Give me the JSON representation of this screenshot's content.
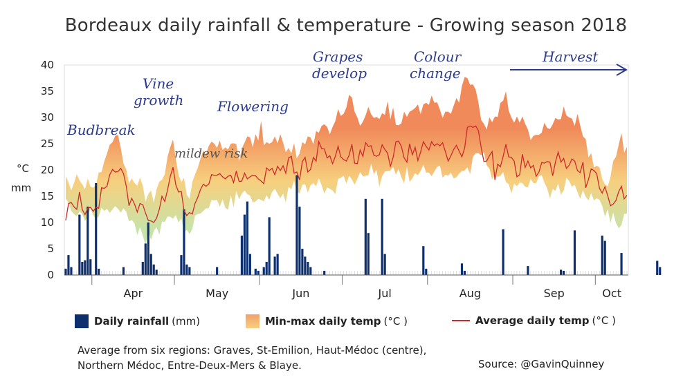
{
  "title": "Bordeaux daily rainfall & temperature - Growing season 2018",
  "y_unit_labels": [
    "°C",
    "mm"
  ],
  "annotations": [
    "Budbreak",
    "Vine growth",
    "Flowering",
    "mildew risk",
    "Grapes develop",
    "Colour change",
    "Harvest"
  ],
  "legend": {
    "rain_bold": "Daily rainfall",
    "rain_unit": "(mm)",
    "range_bold": "Min-max daily temp",
    "range_unit": "(°C )",
    "avg_bold": "Average daily temp",
    "avg_unit": "(°C )"
  },
  "footnote": "Average from six regions: Graves, St-Emilion, Haut-Médoc (centre), Northern Médoc, Entre-Deux-Mers & Blaye.",
  "source": "Source: @GavinQuinney",
  "colors": {
    "rain": "#0d2f6e",
    "avg": "#cc2b2b",
    "range_hot": "#f08a5a",
    "range_mid": "#f7cf7e",
    "range_cool": "#c8e3a8",
    "annot": "#2b3a8e"
  },
  "chart_data": {
    "type": "bar+area+line",
    "title": "Bordeaux daily rainfall & temperature - Growing season 2018",
    "ylabel": "°C / mm",
    "ylim": [
      0,
      40
    ],
    "yticks": [
      0,
      5,
      10,
      15,
      20,
      25,
      30,
      35,
      40
    ],
    "months": [
      "Apr",
      "May",
      "Jun",
      "Jul",
      "Aug",
      "Sep",
      "Oct"
    ],
    "x_start": "2018-03-22",
    "days": 205,
    "legend_position": "bottom",
    "grid": false,
    "series": [
      {
        "name": "Daily rainfall (mm)",
        "type": "bar",
        "values": [
          1.2,
          3.8,
          1.5,
          0,
          0,
          11.5,
          2.5,
          2.8,
          13,
          3,
          0,
          17.5,
          1.2,
          0,
          0,
          0,
          0,
          0,
          0,
          0,
          0,
          1.5,
          0,
          0,
          0,
          0,
          0,
          0,
          2.5,
          6,
          10,
          4,
          2,
          1,
          0,
          0,
          0,
          0,
          0,
          0,
          0,
          0,
          3.8,
          12.5,
          2,
          1.5,
          0,
          0,
          0,
          0,
          0,
          0,
          0,
          0,
          0,
          1.5,
          0,
          0,
          0,
          0,
          0,
          0,
          0,
          0,
          7.5,
          11.5,
          14,
          4,
          0,
          1.2,
          0.8,
          0,
          1.5,
          2.5,
          11,
          0,
          3.5,
          4,
          0,
          0,
          0,
          0,
          0,
          0,
          19,
          13,
          5,
          3.5,
          2.5,
          1.5,
          0,
          0,
          0,
          0,
          0.8,
          0,
          0,
          0,
          0,
          0,
          0,
          0,
          0,
          0,
          0,
          0,
          0,
          0,
          0,
          14.5,
          8,
          0,
          0,
          0,
          0,
          14.5,
          4,
          0,
          0,
          0,
          0,
          0,
          0,
          0,
          0,
          0,
          0,
          0,
          0,
          0,
          5.5,
          1.2,
          0,
          0,
          0,
          0,
          0,
          0,
          0,
          0,
          0,
          0,
          0,
          0,
          2.2,
          0.8,
          0,
          0,
          0,
          0,
          0,
          0,
          0,
          0,
          0,
          0,
          0,
          0,
          0,
          8.7,
          0,
          0,
          0,
          0,
          0,
          0,
          0,
          0,
          1.7,
          0,
          0,
          0,
          0,
          0,
          0,
          0,
          0,
          0,
          0,
          0,
          1,
          0.8,
          0,
          0,
          0,
          8.5,
          0,
          0,
          0,
          0,
          0,
          0,
          0,
          0,
          0,
          7.5,
          6.5,
          0,
          0,
          0,
          0,
          0,
          4.2,
          0,
          0,
          0,
          0,
          0,
          0,
          0,
          0,
          0,
          0,
          0,
          0,
          2.7,
          1.5,
          0,
          0,
          0,
          0,
          0
        ]
      },
      {
        "name": "Min daily temp (°C)",
        "type": "area-low",
        "values": [
          14.5,
          13.8,
          12.2,
          11.6,
          11.2,
          12.1,
          11.6,
          10.3,
          11.1,
          12.7,
          11.4,
          10.6,
          11.2,
          12.8,
          12.2,
          12.6,
          11.8,
          12.5,
          13.1,
          12.6,
          11.9,
          12.7,
          12,
          10.2,
          10.5,
          9.8,
          7.6,
          9.1,
          7.5,
          5.7,
          8.5,
          6.7,
          8.4,
          9.1,
          7.7,
          10.2,
          10.1,
          11.1,
          11.1,
          10.7,
          11.4,
          10,
          10.8,
          8.2,
          8.6,
          7.8,
          8.7,
          11.3,
          11.6,
          11.7,
          12.2,
          12.7,
          12.7,
          14.3,
          14.2,
          14.3,
          13,
          14.4,
          12.8,
          12.4,
          15.2,
          12.9,
          16,
          14.4,
          15.5,
          16.1,
          15.4,
          15.1,
          13.8,
          14,
          14.5,
          14.3,
          14,
          15.2,
          14.3,
          15.8,
          16.4,
          15.5,
          14.6,
          15.5,
          13.8,
          16.8,
          16.3,
          18,
          15.9,
          15.5,
          17.2,
          17.3,
          15.7,
          17.1,
          17.5,
          16.9,
          18.4,
          17.1,
          15.5,
          16.7,
          16.4,
          16.1,
          15.4,
          18.3,
          18.5,
          18.9,
          17.4,
          18.9,
          18.2,
          17.2,
          18.3,
          19.6,
          18.8,
          18.9,
          19,
          21.2,
          19.2,
          20,
          16.8,
          18.8,
          19.7,
          19.8,
          19.9,
          20.6,
          19.1,
          20.2,
          18.6,
          17.4,
          20.7,
          17.7,
          18.4,
          19.4,
          19,
          19.8,
          21,
          19.5,
          19.5,
          18.8,
          19.7,
          20.6,
          20.8,
          18.5,
          19.1,
          18.9,
          19.5,
          18.4,
          18.6,
          19.3,
          19.8,
          19.9,
          20.5,
          19.2,
          22.5,
          23.2,
          23.2,
          22.8,
          23.4,
          20.9,
          20.3,
          18.2,
          19.3,
          18.7,
          18.9,
          19.6,
          17.7,
          17.3,
          15.5,
          17.4,
          16.9,
          17.6,
          17.5,
          16.8,
          16.7,
          18.3,
          17.5,
          17.5,
          18.8,
          19,
          17.6,
          16.5,
          14.6,
          16.4,
          16,
          17.4,
          15.3,
          16.1,
          18.5,
          17.9,
          16.8,
          17.2,
          15.8,
          14.5,
          16.1,
          14.9,
          14.2,
          15.6,
          14.2,
          14.6,
          14.3,
          13.2,
          11.1,
          12.5,
          9.9,
          11.9,
          9.9,
          8.9,
          9.5,
          11.6,
          11.7,
          11.5,
          10.7,
          11.5,
          12.9,
          11.8,
          10.8,
          12.4,
          11.2
        ]
      },
      {
        "name": "Max daily temp (°C)",
        "type": "area-high",
        "values": [
          18.8,
          17.6,
          16.1,
          17.5,
          19.2,
          18,
          17.3,
          16.3,
          18.4,
          16.8,
          16.6,
          17.2,
          19.5,
          19.6,
          21.6,
          23.1,
          24.8,
          25.3,
          26.5,
          26.7,
          24.2,
          21.2,
          20.1,
          17.5,
          18.4,
          17.5,
          17,
          18.5,
          17,
          14,
          15.4,
          16.1,
          13.8,
          16.3,
          17.8,
          18.1,
          19.2,
          22.5,
          24.4,
          25.8,
          22.1,
          19.1,
          17.7,
          18.5,
          15.3,
          14.5,
          17.7,
          19.1,
          20.4,
          22.2,
          23.7,
          22.9,
          24.6,
          25.4,
          25,
          24.2,
          25.6,
          23.8,
          24.3,
          23.9,
          25,
          25.1,
          24.9,
          21.6,
          24.1,
          25.2,
          26.4,
          26.2,
          24.3,
          26.8,
          25.6,
          29.4,
          24.7,
          25.3,
          25,
          25.3,
          26.4,
          25.1,
          26.8,
          25.2,
          23.4,
          24.2,
          23.2,
          25.1,
          22.2,
          23.1,
          25.3,
          24.9,
          26.4,
          26.2,
          24.9,
          27.4,
          27.1,
          28.4,
          28.7,
          28.2,
          26.8,
          28.2,
          29.3,
          31.6,
          30.3,
          30.7,
          31.9,
          34.3,
          33.8,
          31.1,
          30,
          28.4,
          29.2,
          30.4,
          32,
          30.6,
          29.9,
          30.1,
          29.7,
          30.8,
          30.5,
          33.1,
          29.6,
          31.9,
          28.6,
          28.5,
          28.9,
          31.1,
          30.1,
          31.1,
          31.4,
          31.8,
          32.5,
          30.6,
          32.5,
          32.8,
          32.4,
          34.2,
          32.8,
          32.9,
          31.5,
          29.9,
          31.1,
          31.1,
          30.7,
          32.2,
          33.7,
          32.8,
          36,
          37.7,
          37.5,
          36.2,
          36.3,
          35.3,
          32.9,
          29.5,
          28.8,
          27.7,
          30,
          29.1,
          30.2,
          30.1,
          32.8,
          33.2,
          35,
          31.3,
          30,
          29,
          30.2,
          29,
          30.2,
          28.8,
          27.7,
          25.7,
          26.5,
          26.7,
          26.7,
          27.1,
          29,
          28,
          27.8,
          28.7,
          29.9,
          29.6,
          29.7,
          32.1,
          30.4,
          30,
          29.8,
          28.4,
          30.7,
          28.5,
          26.4,
          25.9,
          22.4,
          23.2,
          20.5,
          20.8,
          20.5,
          18.3,
          17.3,
          16.9,
          18.7,
          21.7,
          22.5,
          24.8,
          27,
          23.3,
          24.4,
          24.8,
          25.1
        ]
      },
      {
        "name": "Average daily temp (°C)",
        "type": "line",
        "values": [
          10.4,
          13.6,
          13.8,
          13,
          12.5,
          15.8,
          12.5,
          11.5,
          12.7,
          12.9,
          12.1,
          12.9,
          12.7,
          16.6,
          16.5,
          16.9,
          19.1,
          20.1,
          19.6,
          19.7,
          20.3,
          19.3,
          16.9,
          13.2,
          14.6,
          13.5,
          12,
          13.6,
          13.4,
          11.8,
          10.4,
          10.3,
          10,
          10.8,
          12.5,
          15,
          14,
          16.2,
          18.8,
          20.5,
          17.2,
          15.8,
          15.9,
          12.3,
          11.3,
          11.9,
          11.6,
          13.6,
          14.8,
          16.3,
          17.3,
          16.9,
          17.3,
          19.1,
          19,
          19,
          19.3,
          18.7,
          18.3,
          18.8,
          19,
          17.6,
          19.8,
          17.8,
          17.9,
          19.4,
          18.3,
          18.7,
          19,
          18.9,
          18.3,
          17.9,
          17.4,
          20.4,
          19.9,
          20.3,
          19.1,
          20.7,
          19.9,
          20.8,
          19.4,
          22.3,
          22.6,
          19.4,
          19.6,
          18.1,
          21.6,
          22.4,
          19.6,
          20.1,
          22.4,
          21.7,
          25.4,
          24.1,
          24,
          22.3,
          22.7,
          21.2,
          22.6,
          24.5,
          22.5,
          22,
          21.7,
          22.8,
          24.9,
          21.3,
          21.2,
          23.8,
          22.6,
          25.2,
          24.5,
          24.6,
          22.8,
          22.6,
          22.9,
          24.8,
          23.9,
          23.2,
          20.7,
          22.4,
          25.4,
          25.5,
          24.5,
          22.3,
          21.5,
          25,
          22.9,
          24.3,
          21.8,
          23.4,
          25.4,
          24.5,
          23.8,
          25.4,
          24.6,
          25,
          24.6,
          25.2,
          23.5,
          21.7,
          22.7,
          23.9,
          24.7,
          23.6,
          22.5,
          24.2,
          28.1,
          28.4,
          28.1,
          28.4,
          27.5,
          24.3,
          21.6,
          21.7,
          22.7,
          23.5,
          18.1,
          21.1,
          20.6,
          22.6,
          24.9,
          22.5,
          22.4,
          21.7,
          18.7,
          19.1,
          23,
          20.5,
          21.7,
          20.4,
          20.9,
          18.8,
          19.6,
          21.4,
          21.3,
          21.6,
          21.5,
          18.9,
          21.5,
          23.4,
          21.5,
          22.2,
          20.3,
          20.9,
          22.1,
          21.7,
          19.9,
          19.5,
          21.5,
          16.6,
          18.2,
          20.2,
          19.9,
          19.3,
          16.5,
          15.6,
          16.8,
          15.1,
          13.2,
          13.5,
          14.2,
          15.9,
          16.9,
          14.5,
          15.2,
          16.8,
          17.5,
          17.7
        ]
      }
    ]
  }
}
